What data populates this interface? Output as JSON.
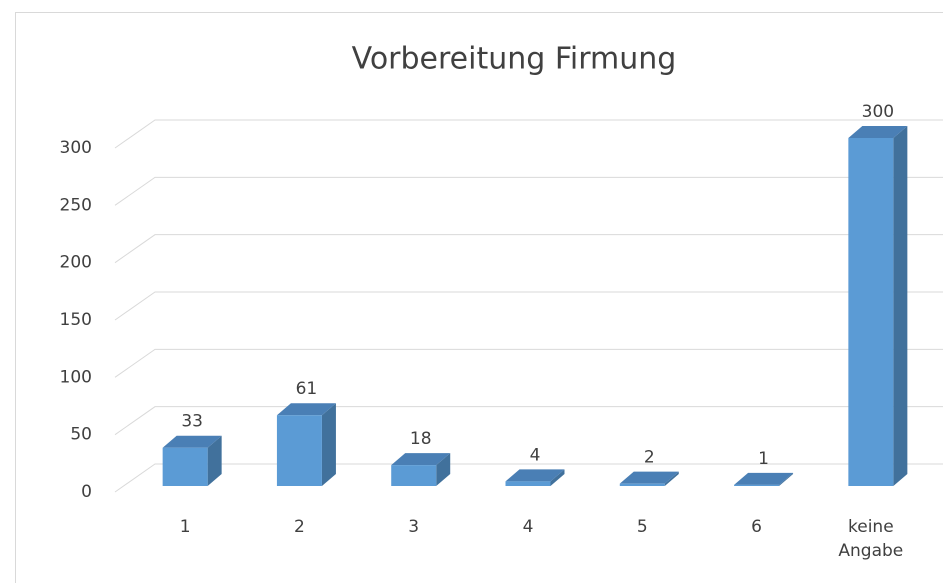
{
  "chart_data": {
    "type": "bar",
    "title": "Vorbereitung Firmung",
    "categories": [
      "1",
      "2",
      "3",
      "4",
      "5",
      "6",
      "keine Angabe"
    ],
    "values": [
      33,
      61,
      18,
      4,
      2,
      1,
      300
    ],
    "color": "#5b9bd5",
    "ylim": [
      0,
      300
    ],
    "yticks": [
      0,
      50,
      100,
      150,
      200,
      250,
      300
    ],
    "grid": true
  }
}
